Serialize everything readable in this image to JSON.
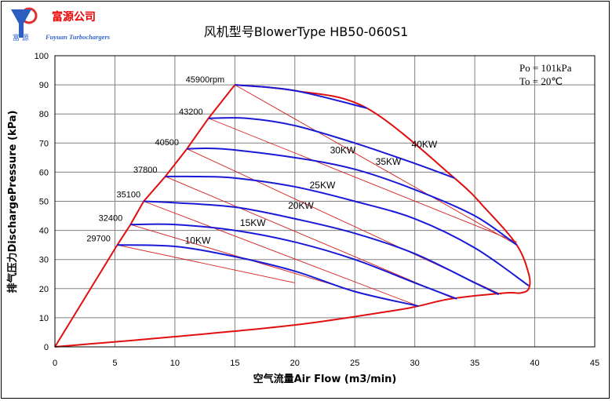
{
  "logo": {
    "company_cn": "富源公司",
    "company_cn_small": "富 源",
    "company_en": "Fuyuan Turbochargers"
  },
  "chart_data": {
    "type": "line",
    "title": "风机型号BlowerType HB50-060S1",
    "xlabel": "空气流量Air Flow (m3/min)",
    "ylabel": "排气压力DischargePressure (kPa)",
    "xlim": [
      0,
      45
    ],
    "ylim": [
      0,
      100
    ],
    "x_ticks": [
      0,
      5,
      10,
      15,
      20,
      25,
      30,
      35,
      40,
      45
    ],
    "y_ticks": [
      0,
      10,
      20,
      30,
      40,
      50,
      60,
      70,
      80,
      90,
      100
    ],
    "grid": true,
    "conditions": [
      "Po = 101kPa",
      "To = 20℃"
    ],
    "speed_lines": [
      {
        "label": "29700",
        "points": [
          [
            5.2,
            35
          ],
          [
            10,
            34.5
          ],
          [
            15,
            31
          ],
          [
            20,
            26
          ],
          [
            25,
            19
          ],
          [
            30.3,
            14
          ]
        ]
      },
      {
        "label": "32400",
        "points": [
          [
            6.3,
            42
          ],
          [
            10,
            42
          ],
          [
            15,
            40
          ],
          [
            20,
            36
          ],
          [
            25,
            30
          ],
          [
            30,
            22
          ],
          [
            33.5,
            16.5
          ]
        ]
      },
      {
        "label": "35100",
        "points": [
          [
            7.4,
            50
          ],
          [
            10,
            49.5
          ],
          [
            15,
            48
          ],
          [
            20,
            44
          ],
          [
            25,
            39
          ],
          [
            30,
            32
          ],
          [
            35,
            22
          ],
          [
            37,
            18
          ]
        ]
      },
      {
        "label": "37800",
        "points": [
          [
            9.2,
            58.5
          ],
          [
            12,
            58.5
          ],
          [
            15,
            58
          ],
          [
            20,
            55
          ],
          [
            25,
            50
          ],
          [
            30,
            44
          ],
          [
            35,
            34
          ],
          [
            39.5,
            21
          ]
        ]
      },
      {
        "label": "40500",
        "points": [
          [
            11,
            68
          ],
          [
            14,
            68
          ],
          [
            20,
            65
          ],
          [
            25,
            61
          ],
          [
            30,
            54
          ],
          [
            35,
            45
          ],
          [
            38.5,
            35
          ]
        ]
      },
      {
        "label": "43200",
        "points": [
          [
            12.8,
            78.5
          ],
          [
            16,
            78.5
          ],
          [
            20,
            76
          ],
          [
            25,
            70
          ],
          [
            30,
            63
          ],
          [
            33.3,
            58
          ]
        ]
      },
      {
        "label": "45900rpm",
        "points": [
          [
            15,
            90
          ],
          [
            20,
            88
          ],
          [
            26,
            82
          ]
        ]
      }
    ],
    "surge_line": [
      [
        0,
        0
      ],
      [
        5.2,
        35
      ],
      [
        6.3,
        42
      ],
      [
        7.4,
        50
      ],
      [
        9.2,
        58.5
      ],
      [
        11,
        68
      ],
      [
        12.8,
        78.5
      ],
      [
        15,
        90
      ]
    ],
    "choke_line": [
      [
        15,
        90
      ],
      [
        20,
        88
      ],
      [
        26,
        82
      ],
      [
        33.3,
        58
      ],
      [
        36,
        47
      ],
      [
        38.5,
        35
      ],
      [
        39.5,
        25
      ],
      [
        39.5,
        20
      ],
      [
        38.8,
        18.5
      ],
      [
        37.5,
        18.5
      ],
      [
        33,
        16.5
      ],
      [
        30.3,
        14
      ],
      [
        28,
        12.3
      ],
      [
        20,
        7.5
      ],
      [
        10,
        3.5
      ],
      [
        0,
        0
      ]
    ],
    "power_lines": [
      {
        "label": "10KW",
        "points": [
          [
            5.2,
            35
          ],
          [
            20,
            22
          ]
        ]
      },
      {
        "label": "15KW",
        "points": [
          [
            6.3,
            42
          ],
          [
            25.5,
            18.5
          ]
        ]
      },
      {
        "label": "20KW",
        "points": [
          [
            7.4,
            50
          ],
          [
            30.3,
            14
          ]
        ]
      },
      {
        "label": "25KW",
        "points": [
          [
            9.2,
            58.5
          ],
          [
            33.3,
            16.5
          ]
        ]
      },
      {
        "label": "30KW",
        "points": [
          [
            11,
            68
          ],
          [
            37.2,
            18
          ]
        ]
      },
      {
        "label": "35KW",
        "points": [
          [
            12.8,
            78.5
          ],
          [
            38.5,
            36
          ]
        ]
      },
      {
        "label": "40KW",
        "points": [
          [
            15,
            90
          ],
          [
            38.5,
            35
          ]
        ]
      }
    ],
    "annotations": [
      {
        "text": "45900rpm",
        "x": 14.4,
        "y": 90
      },
      {
        "text": "43200",
        "x": 12.6,
        "y": 79
      },
      {
        "text": "40500",
        "x": 10.6,
        "y": 68.5
      },
      {
        "text": "37800",
        "x": 8.8,
        "y": 59
      },
      {
        "text": "35100",
        "x": 7.4,
        "y": 50.5
      },
      {
        "text": "32400",
        "x": 5.9,
        "y": 42.5
      },
      {
        "text": "29700",
        "x": 4.9,
        "y": 35.5
      },
      {
        "text": "10KW",
        "x": 11.9,
        "y": 35.5
      },
      {
        "text": "15KW",
        "x": 16.5,
        "y": 41.5
      },
      {
        "text": "20KW",
        "x": 20.5,
        "y": 47.5
      },
      {
        "text": "25KW",
        "x": 22.3,
        "y": 54.5
      },
      {
        "text": "30KW",
        "x": 24,
        "y": 66.5
      },
      {
        "text": "35KW",
        "x": 27.8,
        "y": 62.5
      },
      {
        "text": "40KW",
        "x": 30.8,
        "y": 68.5
      }
    ],
    "colors": {
      "speed": "#1a1ad6",
      "envelope": "#e01010",
      "power": "#d42020",
      "grid": "#808080"
    }
  }
}
